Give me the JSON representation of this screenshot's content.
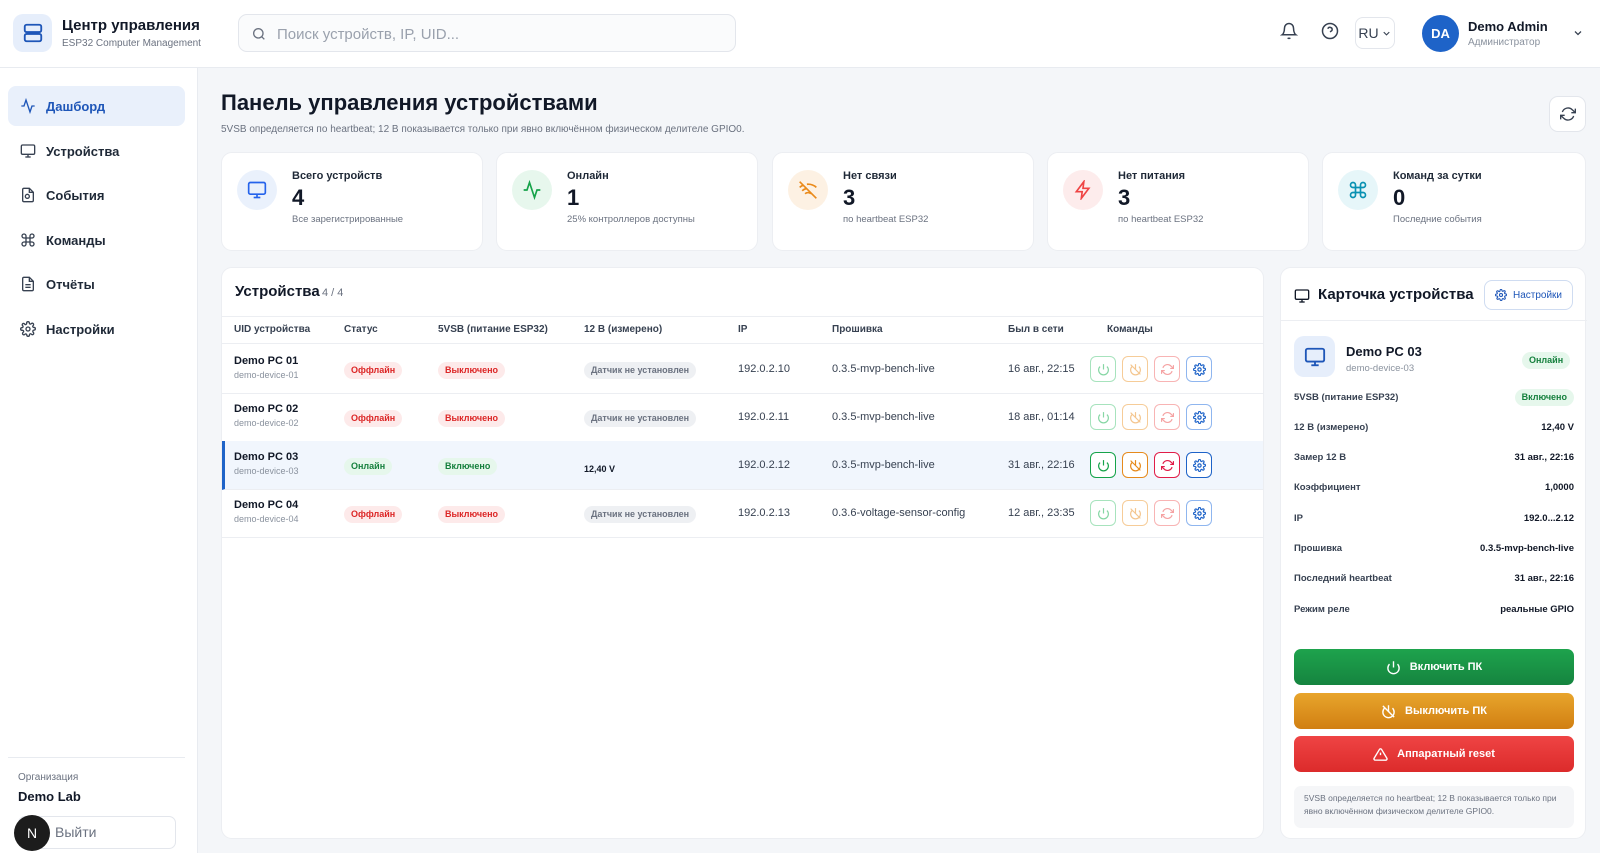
{
  "app": {
    "title": "Центр управления",
    "subtitle": "ESP32 Computer Management"
  },
  "search": {
    "placeholder": "Поиск устройств, IP, UID..."
  },
  "header": {
    "lang": "RU",
    "avatar_initials": "DA",
    "user_name": "Demo Admin",
    "user_role": "Администратор"
  },
  "sidebar": {
    "items": [
      {
        "label": "Дашборд",
        "icon": "activity-icon",
        "active": true
      },
      {
        "label": "Устройства",
        "icon": "monitor-icon"
      },
      {
        "label": "События",
        "icon": "events-icon"
      },
      {
        "label": "Команды",
        "icon": "command-icon"
      },
      {
        "label": "Отчёты",
        "icon": "report-icon"
      },
      {
        "label": "Настройки",
        "icon": "gear-icon"
      }
    ],
    "org_label": "Организация",
    "org_name": "Demo Lab",
    "logout": "Выйти",
    "badge": "N"
  },
  "page": {
    "title": "Панель управления устройствами",
    "subtitle": "5VSB определяется по heartbeat; 12 В показывается только при явно включённом физическом делителе GPIO0."
  },
  "stats": [
    {
      "label": "Всего устройств",
      "value": "4",
      "note": "Все зарегистрированные",
      "icon": "monitor-icon",
      "color": "#2563eb",
      "bg": "#eaf1fc"
    },
    {
      "label": "Онлайн",
      "value": "1",
      "note": "25% контроллеров доступны",
      "icon": "activity-icon",
      "color": "#16a34a",
      "bg": "#e7f7ed"
    },
    {
      "label": "Нет связи",
      "value": "3",
      "note": "по heartbeat ESP32",
      "icon": "wifi-off-icon",
      "color": "#ea8a1a",
      "bg": "#fdf1e3"
    },
    {
      "label": "Нет питания",
      "value": "3",
      "note": "по heartbeat ESP32",
      "icon": "zap-off-icon",
      "color": "#ef4444",
      "bg": "#fdecec"
    },
    {
      "label": "Команд за сутки",
      "value": "0",
      "note": "Последние события",
      "icon": "command-icon",
      "color": "#0891b2",
      "bg": "#e6f6f9"
    }
  ],
  "devices": {
    "title": "Устройства",
    "count": "4 / 4",
    "columns": [
      "UID устройства",
      "Статус",
      "5VSB (питание ESP32)",
      "12 В (измерено)",
      "IP",
      "Прошивка",
      "Был в сети",
      "Команды"
    ],
    "rows": [
      {
        "name": "Demo PC 01",
        "uid": "demo-device-01",
        "status": "Оффлайн",
        "status_kind": "off",
        "vsb": "Выключено",
        "vsb_kind": "off",
        "v12": "Датчик не установлен",
        "v12_kind": "gray",
        "ip": "192.0.2.10",
        "fw": "0.3.5-mvp-bench-live",
        "seen": "16 авг., 22:15",
        "selected": false
      },
      {
        "name": "Demo PC 02",
        "uid": "demo-device-02",
        "status": "Оффлайн",
        "status_kind": "off",
        "vsb": "Выключено",
        "vsb_kind": "off",
        "v12": "Датчик не установлен",
        "v12_kind": "gray",
        "ip": "192.0.2.11",
        "fw": "0.3.5-mvp-bench-live",
        "seen": "18 авг., 01:14",
        "selected": false
      },
      {
        "name": "Demo PC 03",
        "uid": "demo-device-03",
        "status": "Онлайн",
        "status_kind": "on",
        "vsb": "Включено",
        "vsb_kind": "on",
        "v12": "12,40 V",
        "v12_kind": "bold",
        "ip": "192.0.2.12",
        "fw": "0.3.5-mvp-bench-live",
        "seen": "31 авг., 22:16",
        "selected": true
      },
      {
        "name": "Demo PC 04",
        "uid": "demo-device-04",
        "status": "Оффлайн",
        "status_kind": "off",
        "vsb": "Выключено",
        "vsb_kind": "off",
        "v12": "Датчик не установлен",
        "v12_kind": "gray",
        "ip": "192.0.2.13",
        "fw": "0.3.6-voltage-sensor-config",
        "seen": "12 авг., 23:35",
        "selected": false
      }
    ]
  },
  "card": {
    "title": "Карточка устройства",
    "settings": "Настройки",
    "device_name": "Demo PC 03",
    "device_uid": "demo-device-03",
    "status": "Онлайн",
    "fields": [
      {
        "k": "5VSB (питание ESP32)",
        "v": "Включено",
        "pill": true
      },
      {
        "k": "12 В (измерено)",
        "v": "12,40 V"
      },
      {
        "k": "Замер 12 В",
        "v": "31 авг., 22:16"
      },
      {
        "k": "Коэффициент",
        "v": "1,0000"
      },
      {
        "k": "IP",
        "v": "192.0...2.12"
      },
      {
        "k": "Прошивка",
        "v": "0.3.5-mvp-bench-live"
      },
      {
        "k": "Последний heartbeat",
        "v": "31 авг., 22:16"
      },
      {
        "k": "Режим реле",
        "v": "реальные GPIO"
      }
    ],
    "btn_on": "Включить ПК",
    "btn_off": "Выключить ПК",
    "btn_reset": "Аппаратный reset",
    "note": "5VSB определяется по heartbeat; 12 В показывается только при явно включённом физическом делителе GPIO0."
  }
}
